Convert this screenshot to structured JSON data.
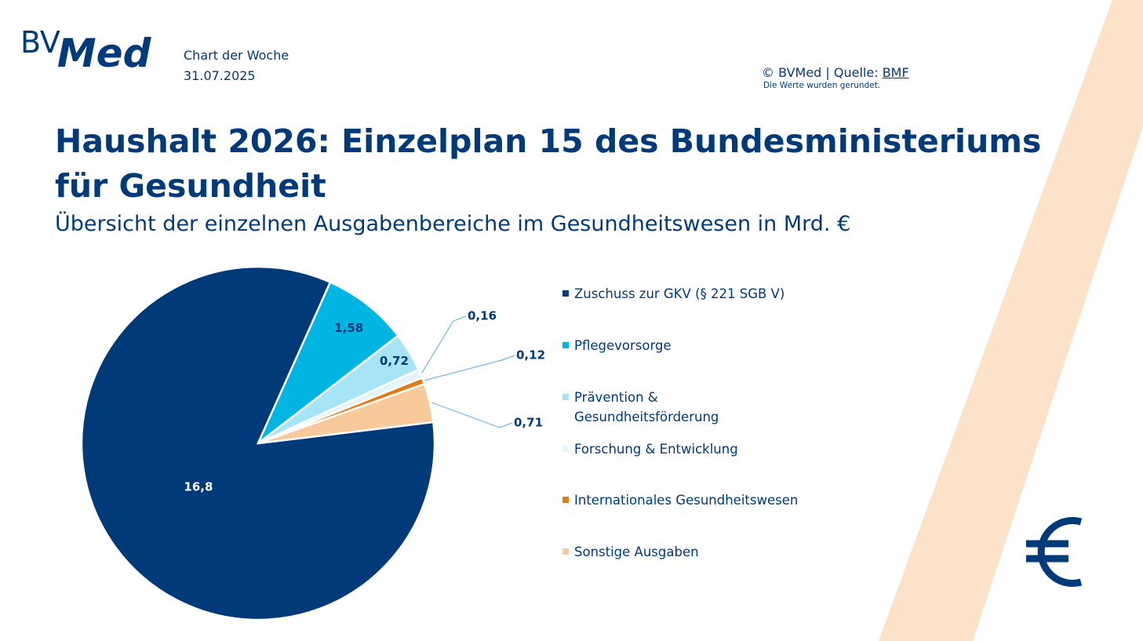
{
  "header": {
    "logo_bv": "BV",
    "logo_med": "Med",
    "series_name": "Chart der Woche",
    "date": "31.07.2025",
    "copyright": "© BVMed | Quelle:",
    "source": "BMF",
    "note": "Die Werte wurden gerundet."
  },
  "chart_data": {
    "type": "pie",
    "title": "Haushalt 2026: Einzelplan 15 des Bundesministeriums für Gesundheit",
    "subtitle": "Übersicht der einzelnen Ausgabenbereiche im Gesundheitswesen in Mrd. €",
    "categories": [
      "Zuschuss zur GKV (§ 221 SGB V)",
      "Pflegevorsorge",
      "Prävention & Gesundheitsförderung",
      "Forschung & Entwicklung",
      "Internationales Gesundheitswesen",
      "Sonstige Ausgaben"
    ],
    "values": [
      16.8,
      1.58,
      0.72,
      0.16,
      0.12,
      0.71
    ],
    "value_labels": [
      "16,8",
      "1,58",
      "0,72",
      "0,16",
      "0,12",
      "0,71"
    ],
    "colors": [
      "#003a78",
      "#00b5e2",
      "#a6e4f6",
      "#e2f5fb",
      "#e07b1a",
      "#f8c99a"
    ]
  }
}
